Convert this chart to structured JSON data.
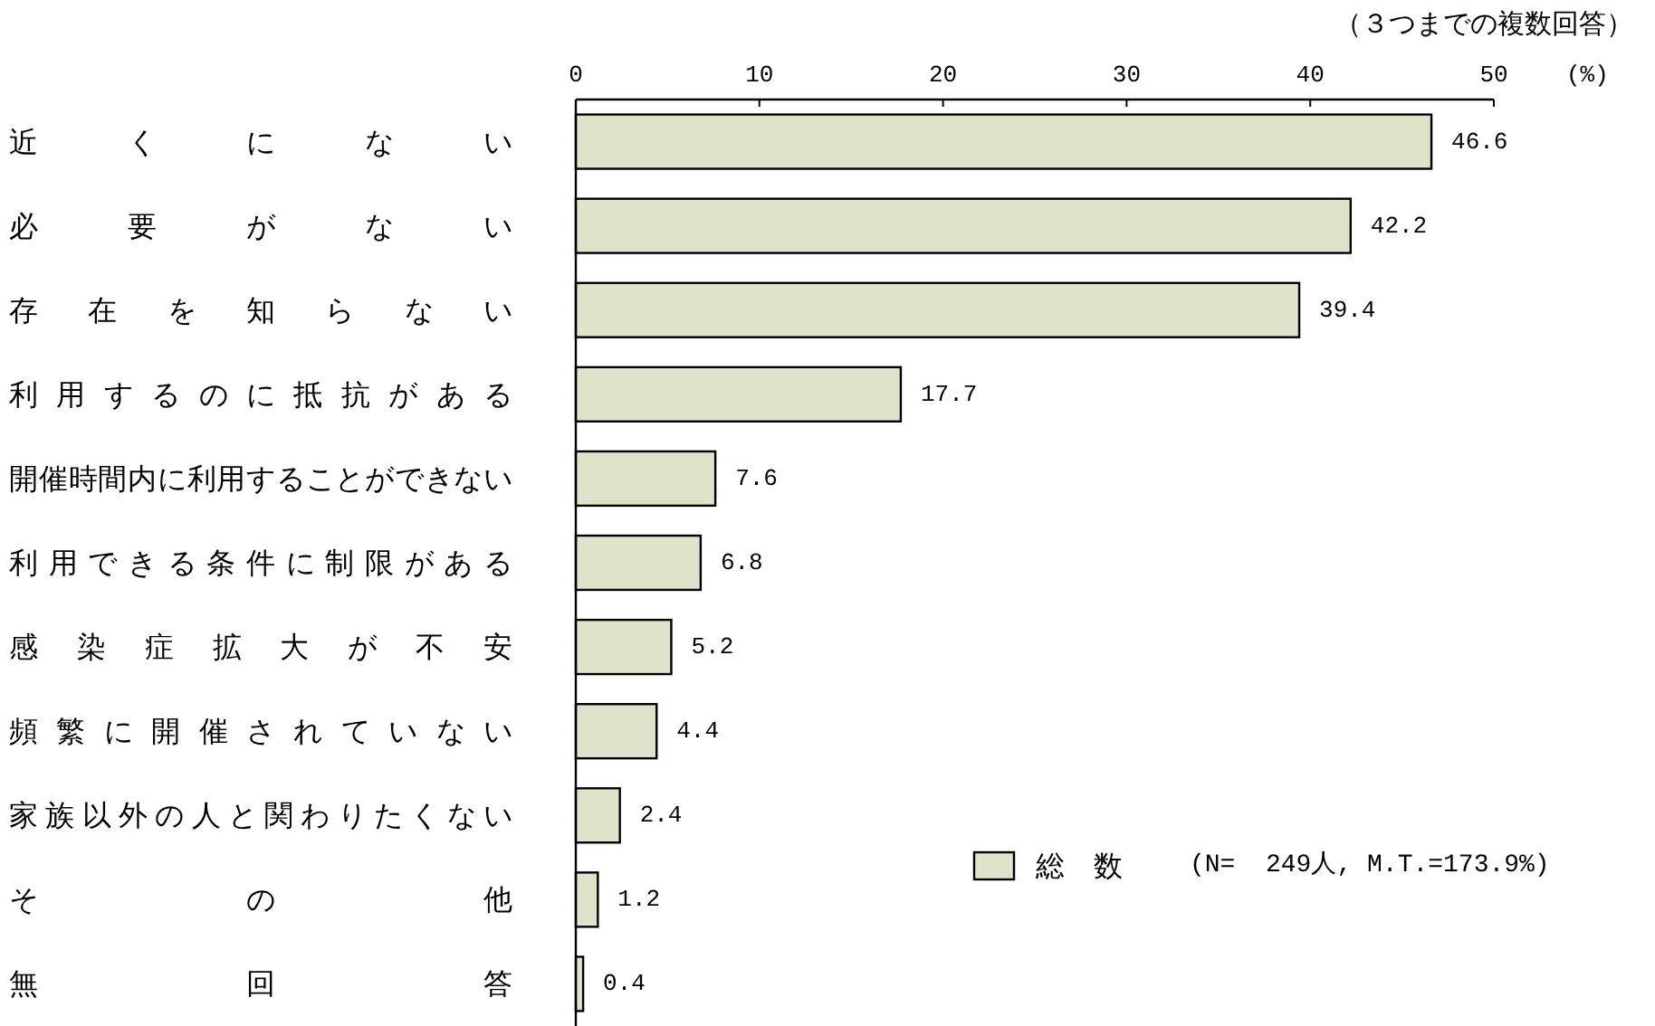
{
  "chart_data": {
    "type": "bar",
    "orientation": "horizontal",
    "subtitle": "（３つまでの複数回答）",
    "xlabel": "(%)",
    "categories": [
      "近くにない",
      "必要がない",
      "存在を知らない",
      "利用するのに抵抗がある",
      "開催時間内に利用することができない",
      "利用できる条件に制限がある",
      "感染症拡大が不安",
      "頻繁に開催されていない",
      "家族以外の人と関わりたくない",
      "その他",
      "無回答"
    ],
    "series": [
      {
        "name": "総　数",
        "color": "#dfe3c9",
        "values": [
          46.6,
          42.2,
          39.4,
          17.7,
          7.6,
          6.8,
          5.2,
          4.4,
          2.4,
          1.2,
          0.4
        ]
      }
    ],
    "xlim": [
      0,
      50
    ],
    "xticks": [
      0,
      10,
      20,
      30,
      40,
      50
    ],
    "data_labels": true,
    "legend": "bottom right",
    "annotations": [
      "(N=  249人, M.T.=173.9%)"
    ]
  }
}
